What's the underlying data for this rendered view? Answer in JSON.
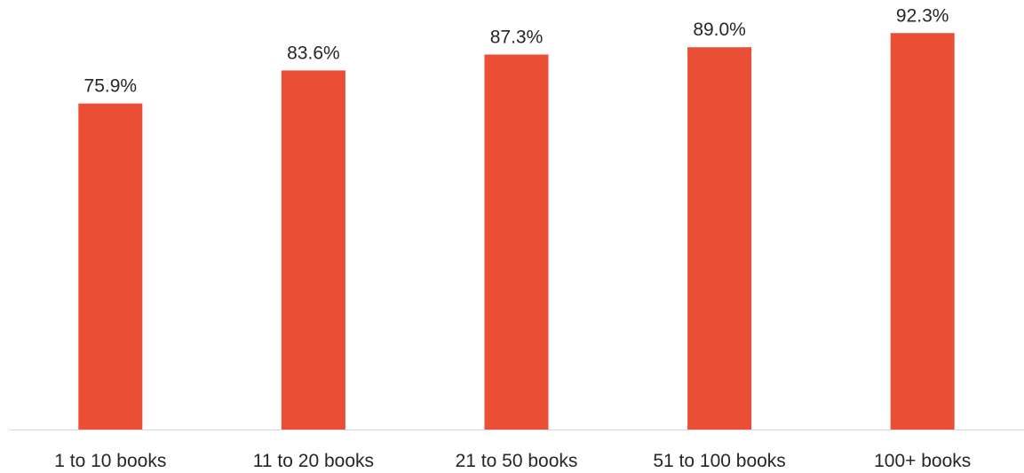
{
  "chart_data": {
    "type": "bar",
    "categories": [
      "1 to 10 books",
      "11 to 20 books",
      "21 to 50 books",
      "51 to 100 books",
      "100+ books"
    ],
    "values": [
      75.9,
      83.6,
      87.3,
      89.0,
      92.3
    ],
    "value_labels": [
      "75.9%",
      "83.6%",
      "87.3%",
      "89.0%",
      "92.3%"
    ],
    "title": "",
    "xlabel": "",
    "ylabel": "",
    "ylim": [
      0,
      100
    ],
    "grid": false,
    "legend": "none",
    "colors": {
      "bar": "#EA4E35",
      "axis": "#D9D9D9",
      "text": "#262626"
    }
  }
}
